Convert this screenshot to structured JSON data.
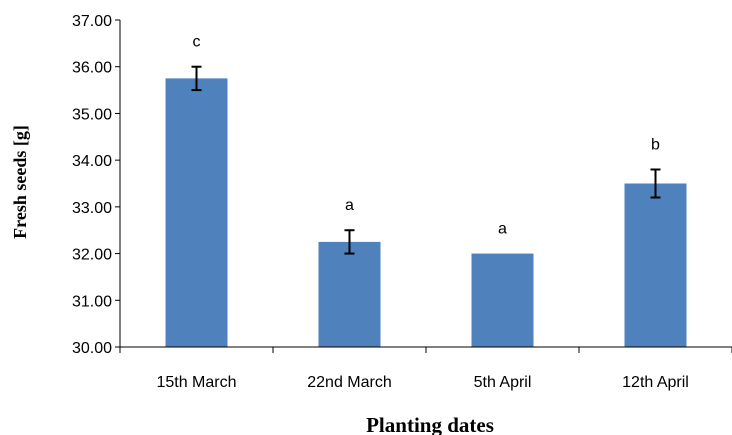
{
  "chart_data": {
    "type": "bar",
    "title": "",
    "xlabel": "Planting dates",
    "ylabel": "Fresh seeds  [g]",
    "categories": [
      "15th March",
      "22nd March",
      "5th April",
      "12th April"
    ],
    "values": [
      35.75,
      32.25,
      32.0,
      33.5
    ],
    "error": [
      0.25,
      0.25,
      0.0,
      0.3
    ],
    "significance_letters": [
      "c",
      "a",
      "a",
      "b"
    ],
    "ylim": [
      30.0,
      37.0
    ],
    "yticks": [
      "30.00",
      "31.00",
      "32.00",
      "33.00",
      "34.00",
      "35.00",
      "36.00",
      "37.00"
    ],
    "grid": false,
    "legend": "none",
    "bar_color": "#4f81bd"
  }
}
